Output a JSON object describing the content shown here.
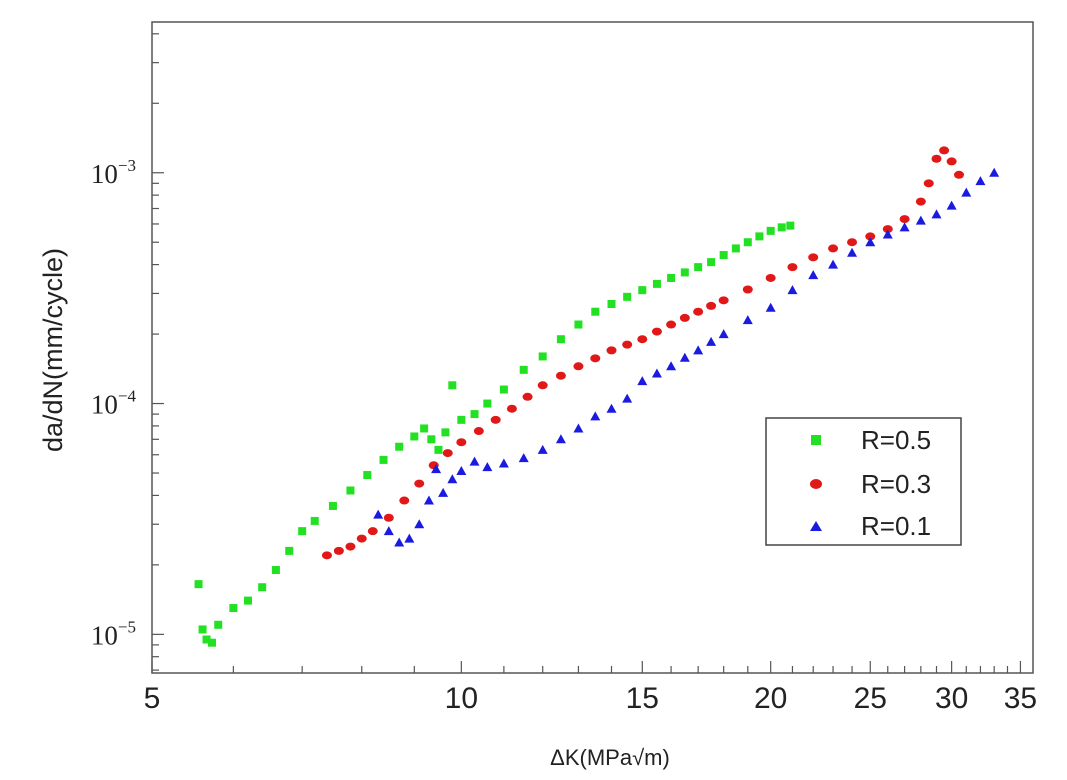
{
  "chart_data": {
    "type": "scatter",
    "title": "",
    "xlabel": "ΔK(MPa√m)",
    "ylabel": "da/dN(mm/cycle)",
    "xscale": "log",
    "yscale": "log",
    "xlim": [
      5,
      36
    ],
    "ylim": [
      6.8e-06,
      0.0045
    ],
    "x_ticks": [
      5,
      10,
      15,
      20,
      25,
      30,
      35
    ],
    "x_tick_labels": [
      "5",
      "10",
      "15",
      "20",
      "25",
      "30",
      "35"
    ],
    "y_ticks": [
      1e-05,
      0.0001,
      0.001
    ],
    "y_tick_labels": [
      {
        "base": "10",
        "exp": "−5"
      },
      {
        "base": "10",
        "exp": "−4"
      },
      {
        "base": "10",
        "exp": "−3"
      }
    ],
    "legend_position": "lower-right",
    "series": [
      {
        "name": "R=0.5",
        "marker": "square",
        "color": "#22e022",
        "x": [
          5.55,
          5.6,
          5.65,
          5.72,
          5.8,
          6.0,
          6.2,
          6.4,
          6.6,
          6.8,
          7.0,
          7.2,
          7.5,
          7.8,
          8.1,
          8.4,
          8.7,
          9.0,
          9.2,
          9.35,
          9.5,
          9.65,
          9.8,
          10.0,
          10.3,
          10.6,
          11.0,
          11.5,
          12.0,
          12.5,
          13.0,
          13.5,
          14.0,
          14.5,
          15.0,
          15.5,
          16.0,
          16.5,
          17.0,
          17.5,
          18.0,
          18.5,
          19.0,
          19.5,
          20.0,
          20.5,
          20.9
        ],
        "y": [
          1.65e-05,
          1.05e-05,
          9.5e-06,
          9.2e-06,
          1.1e-05,
          1.3e-05,
          1.4e-05,
          1.6e-05,
          1.9e-05,
          2.3e-05,
          2.8e-05,
          3.1e-05,
          3.6e-05,
          4.2e-05,
          4.9e-05,
          5.7e-05,
          6.5e-05,
          7.2e-05,
          7.8e-05,
          7e-05,
          6.3e-05,
          7.5e-05,
          0.00012,
          8.5e-05,
          9e-05,
          0.0001,
          0.000115,
          0.00014,
          0.00016,
          0.00019,
          0.00022,
          0.00025,
          0.00027,
          0.00029,
          0.00031,
          0.00033,
          0.00035,
          0.00037,
          0.00039,
          0.00041,
          0.00044,
          0.00047,
          0.0005,
          0.00053,
          0.00056,
          0.00058,
          0.00059
        ]
      },
      {
        "name": "R=0.3",
        "marker": "circle",
        "color": "#e01818",
        "x": [
          7.4,
          7.6,
          7.8,
          8.0,
          8.2,
          8.5,
          8.8,
          9.1,
          9.4,
          9.7,
          10.0,
          10.4,
          10.8,
          11.2,
          11.6,
          12.0,
          12.5,
          13.0,
          13.5,
          14.0,
          14.5,
          15.0,
          15.5,
          16.0,
          16.5,
          17.0,
          17.5,
          18.0,
          19.0,
          20.0,
          21.0,
          22.0,
          23.0,
          24.0,
          25.0,
          26.0,
          27.0,
          28.0,
          28.5,
          29.0,
          29.5,
          30.0,
          30.5
        ],
        "y": [
          2.2e-05,
          2.3e-05,
          2.4e-05,
          2.6e-05,
          2.8e-05,
          3.2e-05,
          3.8e-05,
          4.5e-05,
          5.4e-05,
          6.1e-05,
          6.8e-05,
          7.6e-05,
          8.5e-05,
          9.5e-05,
          0.000107,
          0.00012,
          0.000132,
          0.000145,
          0.000157,
          0.00017,
          0.00018,
          0.00019,
          0.000205,
          0.00022,
          0.000235,
          0.00025,
          0.000265,
          0.00028,
          0.000312,
          0.00035,
          0.00039,
          0.00043,
          0.00047,
          0.0005,
          0.00053,
          0.00057,
          0.00063,
          0.00075,
          0.0009,
          0.00115,
          0.00125,
          0.00112,
          0.00098
        ]
      },
      {
        "name": "R=0.1",
        "marker": "triangle",
        "color": "#1a1ae0",
        "x": [
          8.3,
          8.5,
          8.7,
          8.9,
          9.1,
          9.3,
          9.45,
          9.6,
          9.8,
          10.0,
          10.3,
          10.6,
          11.0,
          11.5,
          12.0,
          12.5,
          13.0,
          13.5,
          14.0,
          14.5,
          15.0,
          15.5,
          16.0,
          16.5,
          17.0,
          17.5,
          18.0,
          19.0,
          20.0,
          21.0,
          22.0,
          23.0,
          24.0,
          25.0,
          26.0,
          27.0,
          28.0,
          29.0,
          30.0,
          31.0,
          32.0,
          33.0
        ],
        "y": [
          3.3e-05,
          2.8e-05,
          2.5e-05,
          2.6e-05,
          3e-05,
          3.8e-05,
          5.2e-05,
          4.1e-05,
          4.7e-05,
          5.1e-05,
          5.6e-05,
          5.3e-05,
          5.5e-05,
          5.8e-05,
          6.3e-05,
          7e-05,
          7.8e-05,
          8.8e-05,
          9.5e-05,
          0.000105,
          0.000125,
          0.000135,
          0.000145,
          0.000158,
          0.00017,
          0.000185,
          0.0002,
          0.00023,
          0.00026,
          0.00031,
          0.00036,
          0.0004,
          0.00045,
          0.0005,
          0.00054,
          0.00058,
          0.00062,
          0.00066,
          0.00072,
          0.00082,
          0.00092,
          0.001
        ]
      }
    ]
  },
  "colors": {
    "axis": "#555555",
    "background": "#ffffff"
  }
}
